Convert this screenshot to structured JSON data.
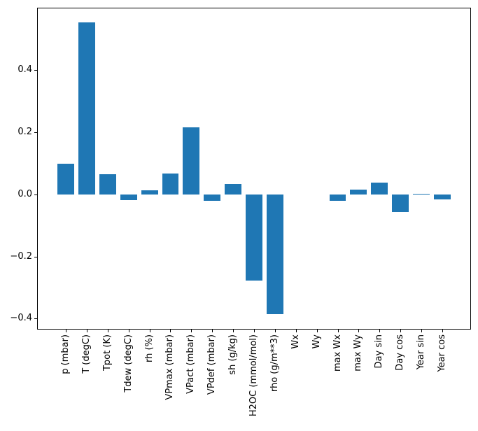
{
  "chart_data": {
    "type": "bar",
    "title": "",
    "xlabel": "",
    "ylabel": "",
    "categories": [
      "p (mbar)",
      "T (degC)",
      "Tpot (K)",
      "Tdew (degC)",
      "rh (%)",
      "VPmax (mbar)",
      "VPact (mbar)",
      "VPdef (mbar)",
      "sh (g/kg)",
      "H2OC (mmol/mol)",
      "rho (g/m**3)",
      "Wx",
      "Wy",
      "max Wx",
      "max Wy",
      "Day sin",
      "Day cos",
      "Year sin",
      "Year cos"
    ],
    "values": [
      0.099,
      0.553,
      0.066,
      -0.018,
      0.013,
      0.068,
      0.217,
      -0.021,
      0.034,
      -0.278,
      -0.386,
      0.0,
      0.0,
      -0.021,
      0.016,
      0.037,
      -0.057,
      0.003,
      -0.016
    ],
    "bar_color": "#1f77b4",
    "bar_width": 0.8,
    "xlim": [
      -1.34,
      19.34
    ],
    "ylim": [
      -0.433,
      0.599
    ],
    "yticks": [
      0.4,
      0.2,
      0.0,
      -0.2,
      -0.4
    ],
    "ytick_labels": [
      "0.4",
      "0.2",
      "0.0",
      "−0.2",
      "−0.4"
    ],
    "grid": false,
    "legend": null,
    "spine_color": "#000000",
    "background": "#ffffff"
  }
}
